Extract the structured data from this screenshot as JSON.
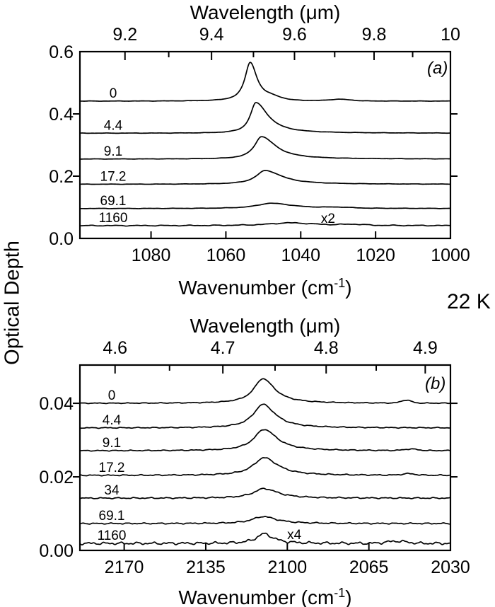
{
  "labels": {
    "ylabel": "Optical Depth",
    "temperature": "22 K"
  },
  "chart_data": [
    {
      "type": "line",
      "panel_label": "(a)",
      "legend_position": "none",
      "grid": false,
      "top_axis": {
        "title": "Wavelength (μm)",
        "major_ticks": [
          9.2,
          9.4,
          9.6,
          9.8,
          10
        ],
        "tick_labels": [
          "9.2",
          "9.4",
          "9.6",
          "9.8",
          "10"
        ],
        "minor_step": 0.1
      },
      "x_axis": {
        "label_prefix": "Wavenumber (cm",
        "label_sup": "-1",
        "label_suffix": ")",
        "ticks": [
          1080,
          1060,
          1040,
          1020,
          1000
        ],
        "tick_labels": [
          "1080",
          "1060",
          "1040",
          "1020",
          "1000"
        ],
        "range": [
          1099,
          1000
        ]
      },
      "y_axis": {
        "ticks": [
          0,
          0.2,
          0.4,
          0.6
        ],
        "tick_labels": [
          "0.0",
          "0.2",
          "0.4",
          "0.6"
        ],
        "range": [
          0,
          0.6
        ]
      },
      "series": [
        {
          "label": "0",
          "baseline": 0.441,
          "peak": {
            "center": 1053.5,
            "height": 0.125,
            "fwhm": 3.4,
            "tail": 1.3
          },
          "bumps": [
            {
              "center": 1047.5,
              "height": 0.008,
              "width": 3
            },
            {
              "center": 1029.5,
              "height": 0.005,
              "width": 4
            }
          ],
          "noise": 0.0006
        },
        {
          "label": "4.4",
          "baseline": 0.338,
          "peak": {
            "center": 1052.0,
            "height": 0.098,
            "fwhm": 3.6,
            "tail": 2.2
          },
          "bumps": [],
          "noise": 0.0006
        },
        {
          "label": "9.1",
          "baseline": 0.255,
          "peak": {
            "center": 1050.5,
            "height": 0.072,
            "fwhm": 4.6,
            "tail": 2.0
          },
          "bumps": [],
          "noise": 0.0006
        },
        {
          "label": "17.2",
          "baseline": 0.174,
          "peak": {
            "center": 1049.5,
            "height": 0.044,
            "fwhm": 6.0,
            "tail": 1.8
          },
          "bumps": [],
          "noise": 0.0006
        },
        {
          "label": "69.1",
          "baseline": 0.096,
          "peak": {
            "center": 1048.0,
            "height": 0.017,
            "fwhm": 9.0,
            "tail": 1.6
          },
          "bumps": [
            {
              "center": 1030,
              "height": 0.0025,
              "width": 5
            }
          ],
          "noise": 0.0007
        },
        {
          "label": "1160",
          "baseline": 0.041,
          "peak": {
            "center": 1043.0,
            "height": 0.009,
            "fwhm": 13.0,
            "tail": 1.3
          },
          "bumps": [
            {
              "center": 1026,
              "height": 0.003,
              "width": 4
            }
          ],
          "noise": 0.0016,
          "scale_factor": "x2"
        }
      ],
      "annotation": {
        "text": "x2",
        "x": 1032.7,
        "y": 0.0614
      }
    },
    {
      "type": "line",
      "panel_label": "(b)",
      "legend_position": "none",
      "grid": false,
      "top_axis": {
        "title": "Wavelength (μm)",
        "major_ticks": [
          4.6,
          4.7,
          4.8,
          4.9
        ],
        "tick_labels": [
          "4.6",
          "4.7",
          "4.8",
          "4.9"
        ],
        "minor_step": 0.05
      },
      "x_axis": {
        "label_prefix": "Wavenumber (cm",
        "label_sup": "-1",
        "label_suffix": ")",
        "ticks": [
          2170,
          2135,
          2100,
          2065,
          2030
        ],
        "tick_labels": [
          "2170",
          "2135",
          "2100",
          "2065",
          "2030"
        ],
        "range": [
          2189,
          2030
        ]
      },
      "y_axis": {
        "ticks": [
          0,
          0.02,
          0.04
        ],
        "tick_labels": [
          "0.00",
          "0.02",
          "0.04"
        ],
        "range": [
          0,
          0.0504
        ]
      },
      "series": [
        {
          "label": "0",
          "baseline": 0.04,
          "peak": {
            "center": 2110.5,
            "height": 0.0067,
            "fwhm": 9.5,
            "tail": 1.3
          },
          "bumps": [
            {
              "center": 2049,
              "height": 0.0008,
              "width": 3
            }
          ],
          "noise": 0.00012
        },
        {
          "label": "4.4",
          "baseline": 0.0333,
          "peak": {
            "center": 2110.5,
            "height": 0.0064,
            "fwhm": 10.0,
            "tail": 1.3
          },
          "bumps": [],
          "noise": 0.00015
        },
        {
          "label": "9.1",
          "baseline": 0.0271,
          "peak": {
            "center": 2110.0,
            "height": 0.0058,
            "fwhm": 10.5,
            "tail": 1.3
          },
          "bumps": [
            {
              "center": 2047,
              "height": 0.0004,
              "width": 4
            }
          ],
          "noise": 0.00015
        },
        {
          "label": "17.2",
          "baseline": 0.0204,
          "peak": {
            "center": 2110.0,
            "height": 0.0048,
            "fwhm": 11.0,
            "tail": 1.3
          },
          "bumps": [
            {
              "center": 2048,
              "height": 0.0004,
              "width": 4
            }
          ],
          "noise": 0.00018
        },
        {
          "label": "34",
          "baseline": 0.0142,
          "peak": {
            "center": 2110.0,
            "height": 0.0026,
            "fwhm": 11.0,
            "tail": 1.3
          },
          "bumps": [],
          "noise": 0.0002
        },
        {
          "label": "69.1",
          "baseline": 0.0073,
          "peak": {
            "center": 2110.5,
            "height": 0.0019,
            "fwhm": 11.0,
            "tail": 1.3
          },
          "bumps": [],
          "noise": 0.0002
        },
        {
          "label": "1160",
          "baseline": 0.0019,
          "peak": {
            "center": 2110.0,
            "height": 0.0026,
            "fwhm": 8.0,
            "tail": 1.2
          },
          "bumps": [
            {
              "center": 2053,
              "height": 0.0006,
              "width": 6
            }
          ],
          "noise": 0.0004,
          "scale_factor": "x4"
        }
      ],
      "annotation": {
        "text": "x4",
        "x": 2097,
        "y": 0.0041
      }
    }
  ]
}
